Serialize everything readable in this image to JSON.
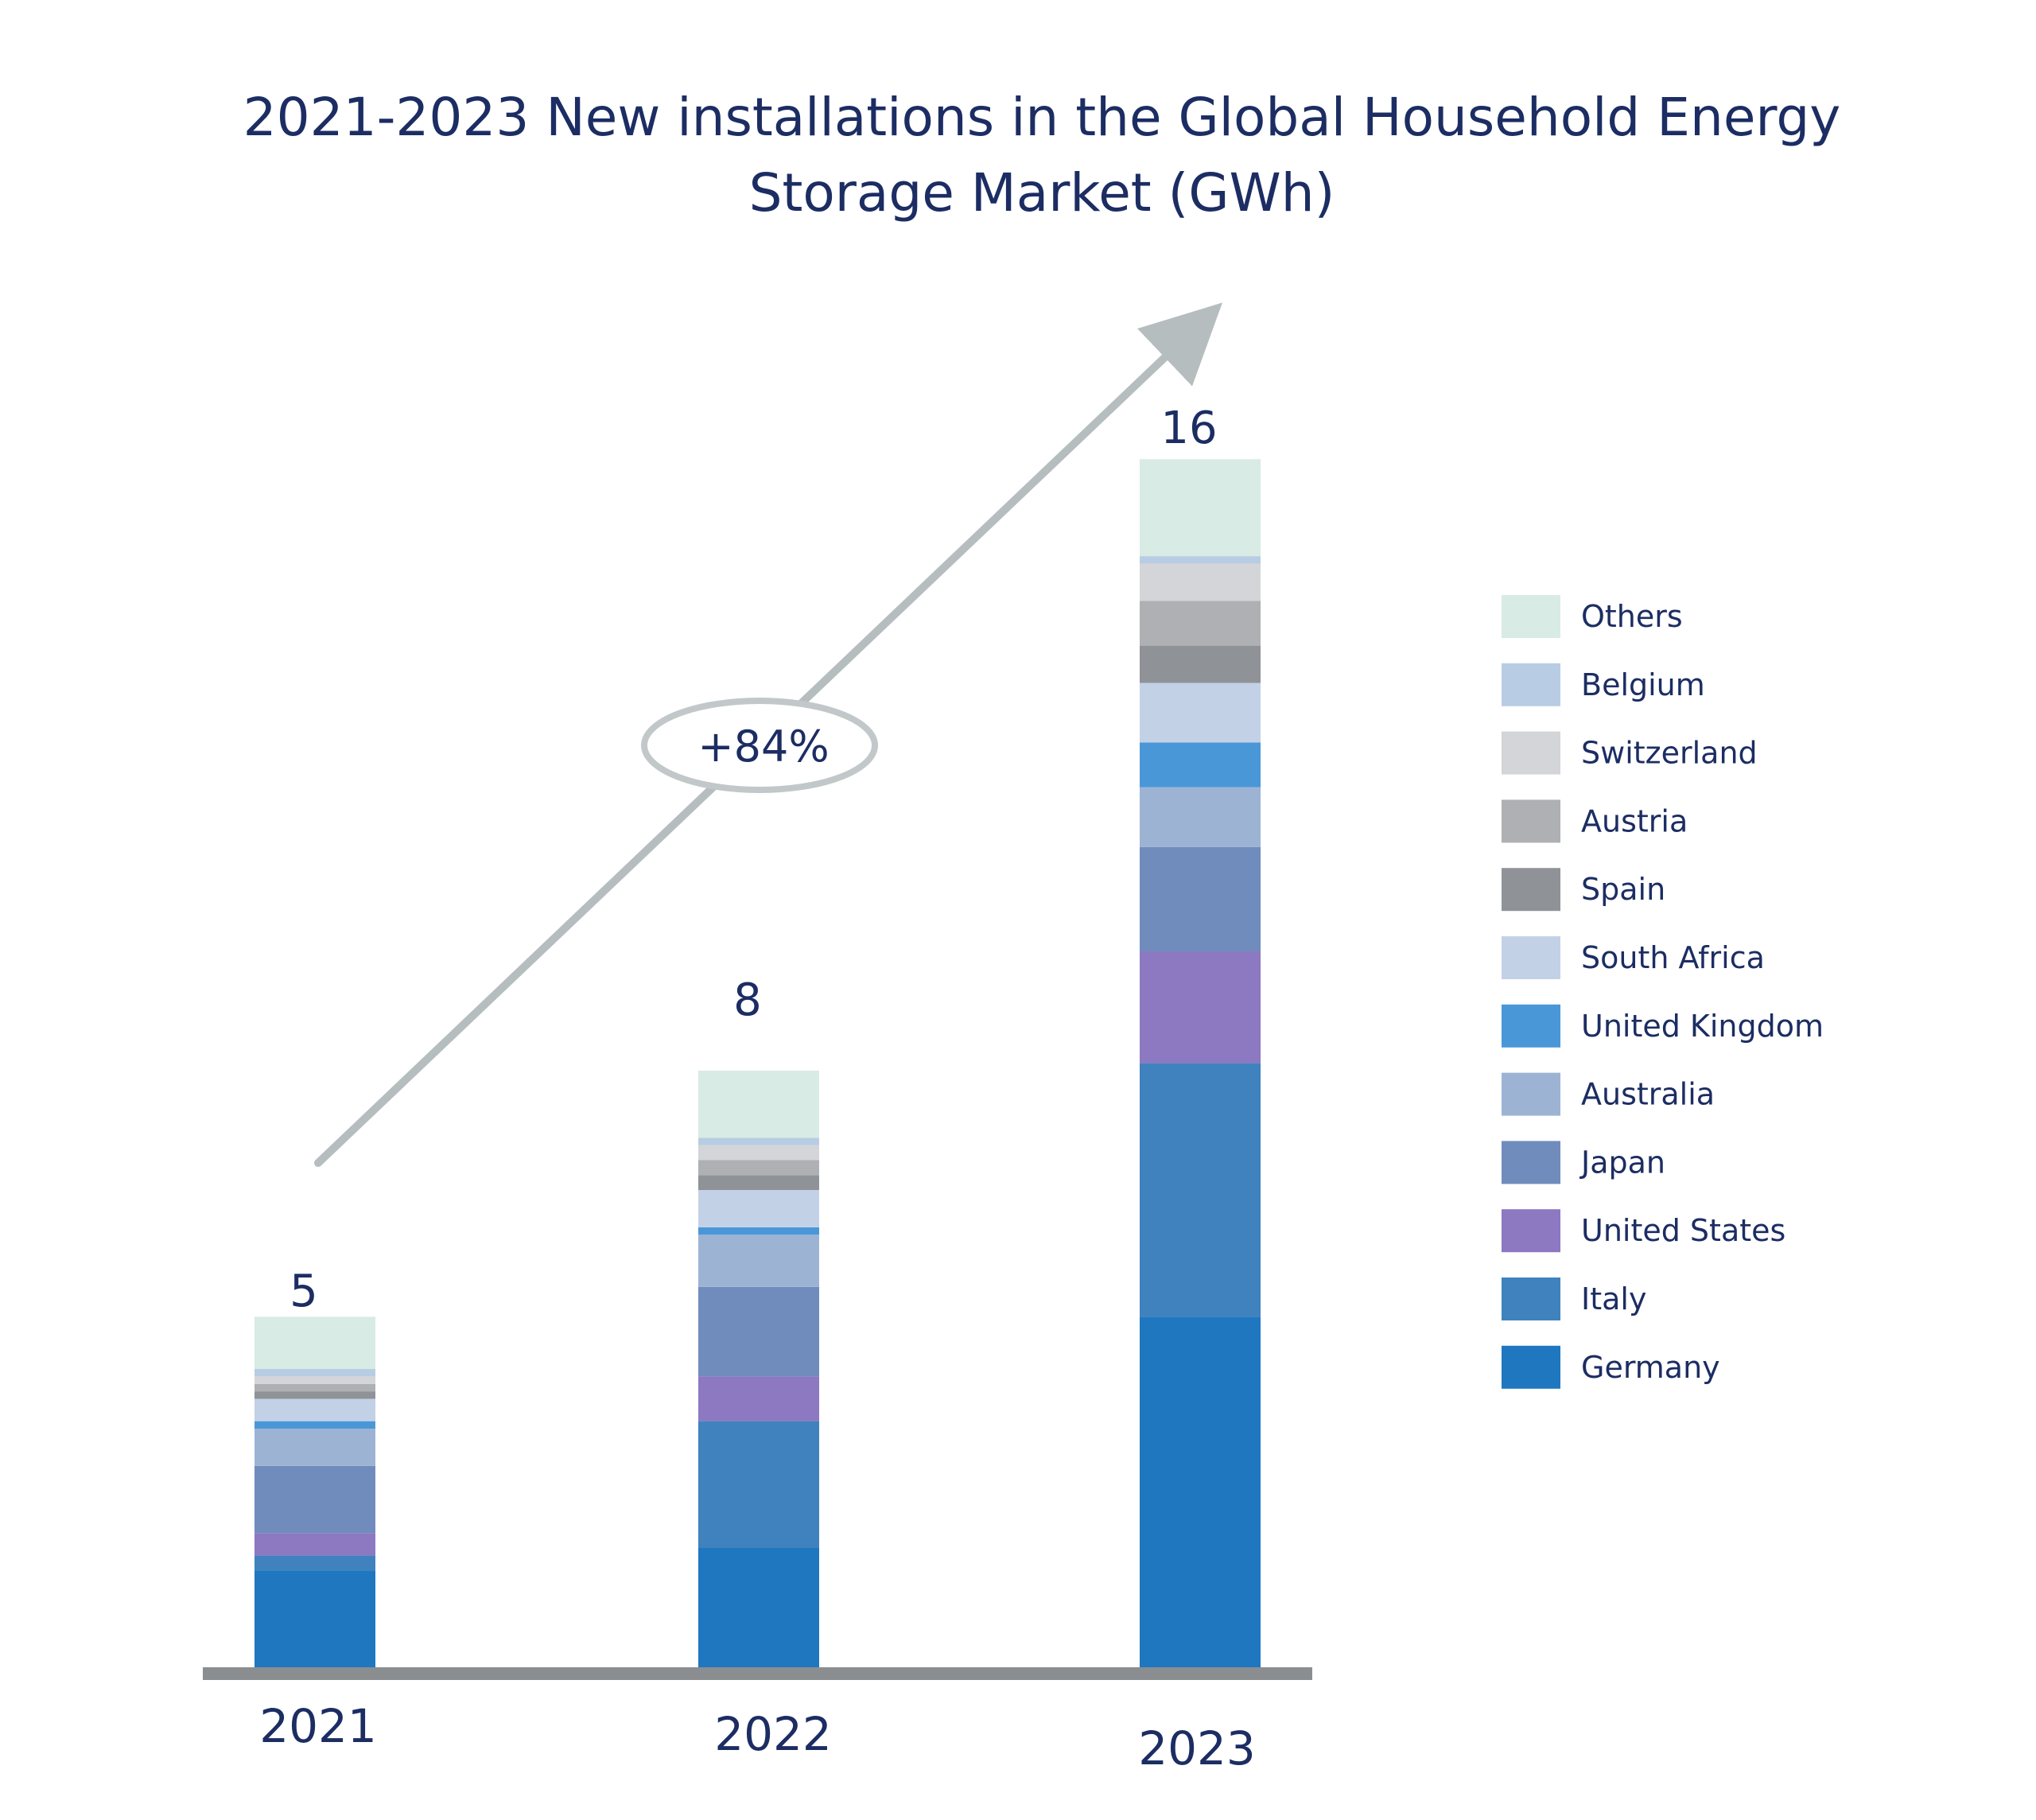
{
  "chart_data": {
    "type": "bar",
    "stacked": true,
    "title_lines": [
      "2021-2023 New installations in the Global Household Energy",
      "Storage Market (GWh)"
    ],
    "categories": [
      "2021",
      "2022",
      "2023"
    ],
    "totals": [
      "5",
      "8",
      "16"
    ],
    "growth_annotation": "+84%",
    "legend_position": "right",
    "grid": false,
    "ylim": [
      0,
      16
    ],
    "series": [
      {
        "name": "Germany",
        "color": "#1f77c0",
        "values": [
          1.3,
          1.6,
          4.7
        ]
      },
      {
        "name": "Italy",
        "color": "#3f82be",
        "values": [
          0.2,
          1.7,
          3.4
        ]
      },
      {
        "name": "United States",
        "color": "#8d78c2",
        "values": [
          0.3,
          0.6,
          1.5
        ]
      },
      {
        "name": "Japan",
        "color": "#6f8cbc",
        "values": [
          0.9,
          1.2,
          1.4
        ]
      },
      {
        "name": "Australia",
        "color": "#9db3d4",
        "values": [
          0.5,
          0.7,
          0.8
        ]
      },
      {
        "name": "United Kingdom",
        "color": "#4a97d8",
        "values": [
          0.1,
          0.1,
          0.6
        ]
      },
      {
        "name": "South Africa",
        "color": "#c3d1e6",
        "values": [
          0.3,
          0.5,
          0.8
        ]
      },
      {
        "name": "Spain",
        "color": "#8f9297",
        "values": [
          0.1,
          0.2,
          0.5
        ]
      },
      {
        "name": "Austria",
        "color": "#aeb0b3",
        "values": [
          0.1,
          0.2,
          0.6
        ]
      },
      {
        "name": "Switzerland",
        "color": "#d3d5d8",
        "values": [
          0.1,
          0.2,
          0.5
        ]
      },
      {
        "name": "Belgium",
        "color": "#b8cde3",
        "values": [
          0.1,
          0.1,
          0.1
        ]
      },
      {
        "name": "Others",
        "color": "#d8ebe4",
        "values": [
          0.7,
          0.9,
          1.3
        ]
      }
    ]
  }
}
